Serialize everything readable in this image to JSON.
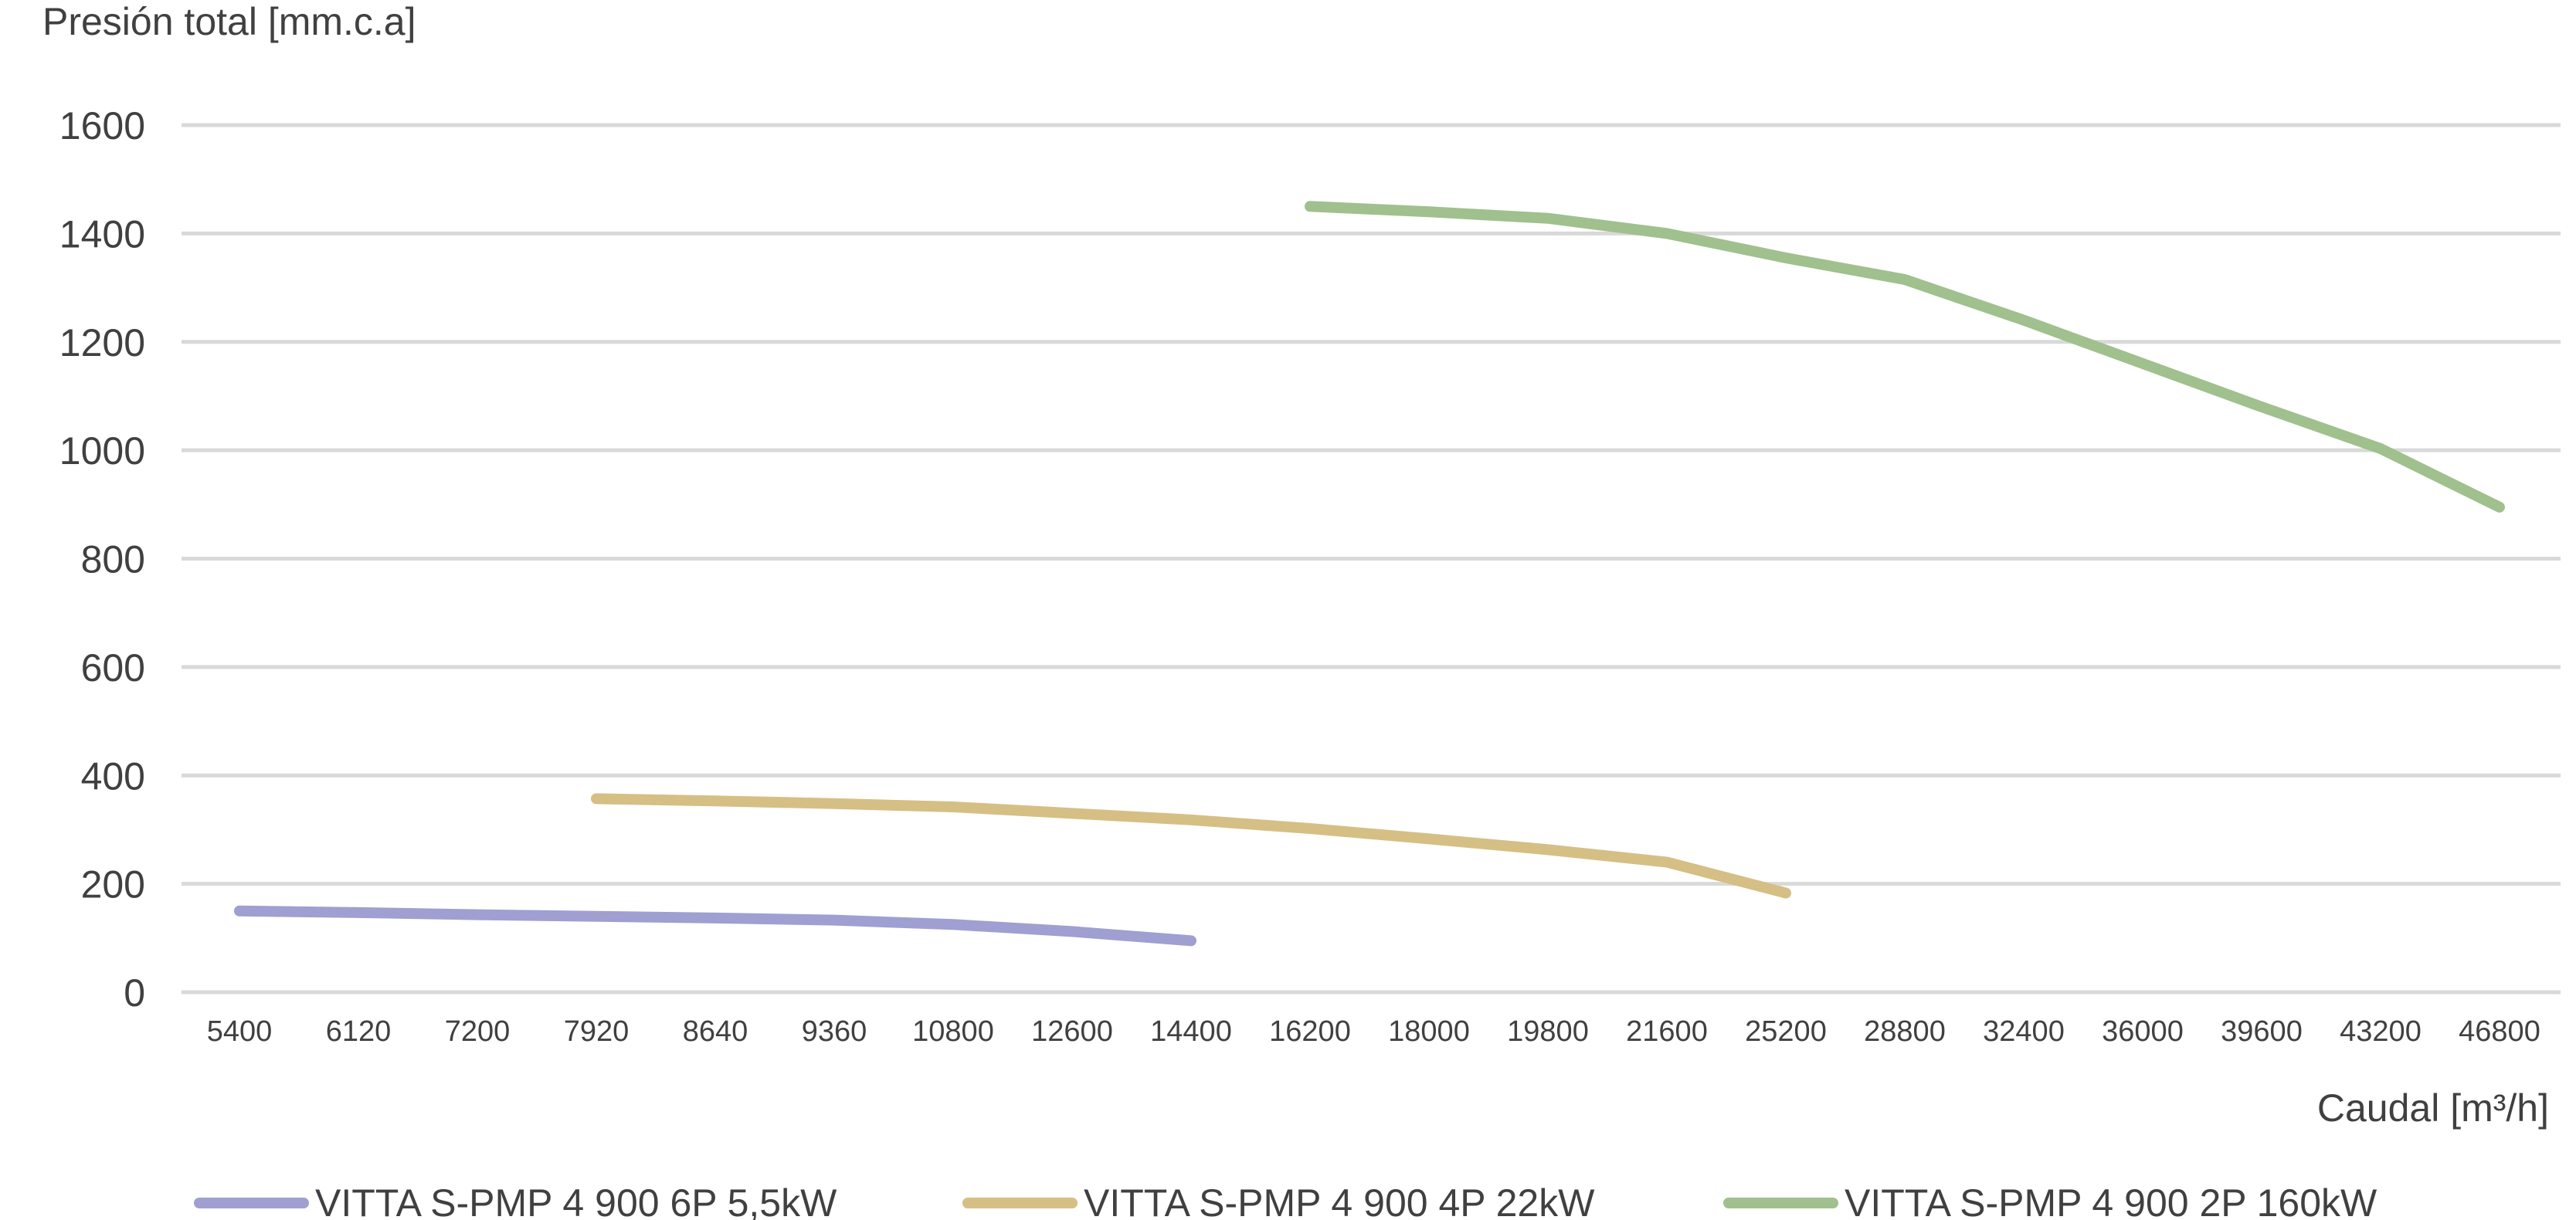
{
  "chart_data": {
    "type": "line",
    "ylabel": "Presión total [mm.c.a]",
    "xlabel": "Caudal [m³/h]",
    "categories": [
      "5400",
      "6120",
      "7200",
      "7920",
      "8640",
      "9360",
      "10800",
      "12600",
      "14400",
      "16200",
      "18000",
      "19800",
      "21600",
      "25200",
      "28800",
      "32400",
      "36000",
      "39600",
      "43200",
      "46800"
    ],
    "ylim": [
      0,
      1600
    ],
    "yticks": [
      0,
      200,
      400,
      600,
      800,
      1000,
      1200,
      1400,
      1600
    ],
    "grid": true,
    "legend_position": "bottom",
    "series": [
      {
        "name": "VITTA S-PMP  4  900  6P  5,5kW",
        "color": "#9f9fd1",
        "values": [
          150,
          147,
          143,
          140,
          137,
          133,
          125,
          112,
          95,
          null,
          null,
          null,
          null,
          null,
          null,
          null,
          null,
          null,
          null,
          null
        ]
      },
      {
        "name": "VITTA S-PMP  4  900  4P  22kW",
        "color": "#d5bf84",
        "values": [
          null,
          null,
          null,
          357,
          353,
          348,
          342,
          330,
          318,
          302,
          283,
          263,
          240,
          183,
          null,
          null,
          null,
          null,
          null,
          null
        ]
      },
      {
        "name": "VITTA S-PMP  4  900  2P  160kW",
        "color": "#a0c08e",
        "values": [
          null,
          null,
          null,
          null,
          null,
          null,
          null,
          null,
          null,
          1450,
          1440,
          1428,
          1400,
          1355,
          1315,
          1240,
          1160,
          1080,
          1003,
          895
        ]
      }
    ]
  }
}
